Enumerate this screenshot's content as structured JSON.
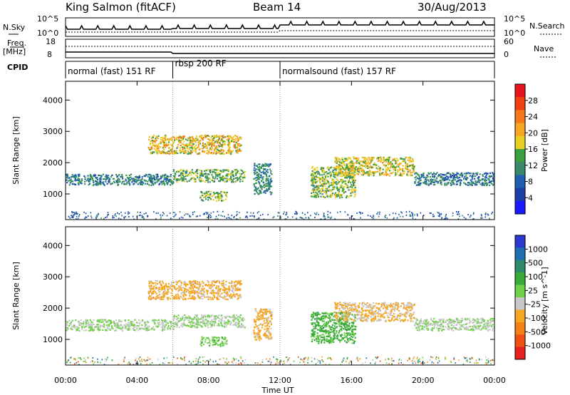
{
  "header": {
    "station": "King Salmon (fitACF)",
    "beam": "Beam 14",
    "date": "30/Aug/2013"
  },
  "strip": {
    "nsky_label": "N.Sky",
    "nsky_ticks": [
      "10^5",
      "10^0"
    ],
    "nsearch_ticks": [
      "10^5",
      "10^0"
    ],
    "nsearch_label": "N.Search",
    "freq_label_line1": "Freq.",
    "freq_label_line2": "[MHz]",
    "freq_ticks": [
      "18",
      "8"
    ],
    "nave_ticks": [
      "60",
      "0"
    ],
    "nave_label": "Nave",
    "cpid_label": "CPID"
  },
  "cpid_segments": [
    {
      "label": "normal (fast) 151 RF",
      "start_hour": 0,
      "end_hour": 6
    },
    {
      "label": "rbsp 200 RF",
      "start_hour": 6,
      "end_hour": 12
    },
    {
      "label": "normalsound (fast) 157 RF",
      "start_hour": 12,
      "end_hour": 24
    }
  ],
  "axes": {
    "ylabel": "Slant Range [km]",
    "xlabel": "Time UT",
    "y_ticks": [
      "1000",
      "2000",
      "3000",
      "4000"
    ],
    "x_ticks": [
      "00:00",
      "04:00",
      "08:00",
      "12:00",
      "16:00",
      "20:00",
      "00:00"
    ]
  },
  "colorbars": {
    "power": {
      "label": "Power [dB]",
      "ticks": [
        "28",
        "24",
        "20",
        "16",
        "12",
        "8",
        "4"
      ],
      "colors": [
        "#e8141c",
        "#f04010",
        "#f5791a",
        "#f5a623",
        "#e8d022",
        "#3aa040",
        "#3a8a6a",
        "#1f5fb0",
        "#1c3fa8",
        "#1a1aff"
      ]
    },
    "velocity": {
      "label": "Velocity [m s^-1]",
      "ticks": [
        "1000",
        "500",
        "100",
        "25",
        "-25",
        "-100",
        "-500",
        "-1000"
      ],
      "colors": [
        "#2a3ad0",
        "#1f6fb0",
        "#2f8a6a",
        "#3aaa3a",
        "#6fd04a",
        "#c8c8c8",
        "#f5a623",
        "#f58018",
        "#f05012",
        "#e82020"
      ]
    }
  },
  "chart_data": [
    {
      "type": "heatmap",
      "title": "King Salmon (fitACF) Beam 14 30/Aug/2013",
      "quantity": "Power [dB]",
      "xlabel": "Time UT",
      "ylabel": "Slant Range [km]",
      "xlim_hours": [
        0,
        24
      ],
      "ylim_km": [
        180,
        4600
      ],
      "color_range": [
        0,
        30
      ],
      "echo_regions": [
        {
          "t_start": 0.0,
          "t_end": 6.0,
          "r_min": 1300,
          "r_max": 1650,
          "power": 9
        },
        {
          "t_start": 6.0,
          "t_end": 10.0,
          "r_min": 1400,
          "r_max": 1800,
          "power": 13
        },
        {
          "t_start": 4.6,
          "t_end": 9.8,
          "r_min": 2300,
          "r_max": 2900,
          "power": 18
        },
        {
          "t_start": 7.5,
          "t_end": 9.0,
          "r_min": 800,
          "r_max": 1100,
          "power": 14
        },
        {
          "t_start": 10.5,
          "t_end": 11.5,
          "r_min": 1000,
          "r_max": 2000,
          "power": 10
        },
        {
          "t_start": 13.7,
          "t_end": 16.2,
          "r_min": 900,
          "r_max": 1900,
          "power": 14
        },
        {
          "t_start": 15.0,
          "t_end": 19.5,
          "r_min": 1600,
          "r_max": 2200,
          "power": 17
        },
        {
          "t_start": 19.5,
          "t_end": 24.0,
          "r_min": 1300,
          "r_max": 1700,
          "power": 8
        }
      ]
    },
    {
      "type": "heatmap",
      "quantity": "Velocity [m s^-1]",
      "xlabel": "Time UT",
      "ylabel": "Slant Range [km]",
      "xlim_hours": [
        0,
        24
      ],
      "ylim_km": [
        180,
        4600
      ],
      "color_range": [
        -1000,
        1000
      ],
      "echo_regions": [
        {
          "t_start": 0.0,
          "t_end": 6.0,
          "r_min": 1300,
          "r_max": 1650,
          "velocity": 0
        },
        {
          "t_start": 6.0,
          "t_end": 10.0,
          "r_min": 1400,
          "r_max": 1800,
          "velocity": 0
        },
        {
          "t_start": 4.6,
          "t_end": 9.8,
          "r_min": 2300,
          "r_max": 2900,
          "velocity": -300
        },
        {
          "t_start": 7.5,
          "t_end": 9.0,
          "r_min": 800,
          "r_max": 1100,
          "velocity": 120
        },
        {
          "t_start": 10.5,
          "t_end": 11.5,
          "r_min": 1000,
          "r_max": 2000,
          "velocity": -300
        },
        {
          "t_start": 13.7,
          "t_end": 16.2,
          "r_min": 900,
          "r_max": 1900,
          "velocity": 300
        },
        {
          "t_start": 15.0,
          "t_end": 19.5,
          "r_min": 1600,
          "r_max": 2200,
          "velocity": -250
        },
        {
          "t_start": 19.5,
          "t_end": 24.0,
          "r_min": 1300,
          "r_max": 1700,
          "velocity": 0
        }
      ]
    }
  ]
}
